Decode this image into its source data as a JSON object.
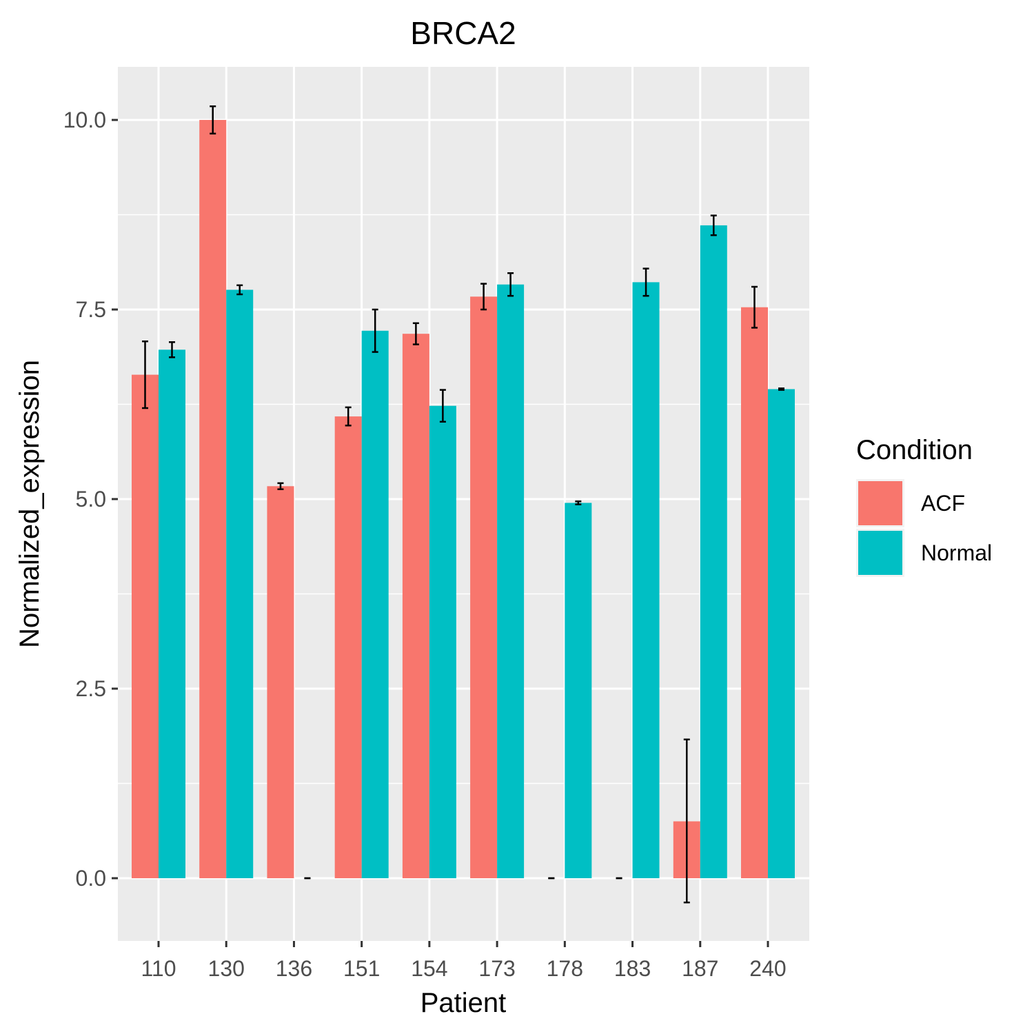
{
  "chart_data": {
    "type": "bar",
    "title": "BRCA2",
    "xlabel": "Patient",
    "ylabel": "Normalized_expression",
    "categories": [
      "110",
      "130",
      "136",
      "151",
      "154",
      "173",
      "178",
      "183",
      "187",
      "240"
    ],
    "series": [
      {
        "name": "ACF",
        "color": "#F8766D",
        "values": [
          6.64,
          10.0,
          5.17,
          6.09,
          7.18,
          7.67,
          0.0,
          0.0,
          0.75,
          7.53
        ],
        "error_low": [
          6.2,
          9.82,
          5.13,
          5.97,
          7.04,
          7.5,
          0.0,
          0.0,
          -0.32,
          7.26
        ],
        "error_high": [
          7.08,
          10.18,
          5.21,
          6.21,
          7.32,
          7.84,
          0.0,
          0.0,
          1.83,
          7.8
        ]
      },
      {
        "name": "Normal",
        "color": "#00BFC4",
        "values": [
          6.97,
          7.76,
          0.0,
          7.22,
          6.23,
          7.83,
          4.95,
          7.86,
          8.61,
          6.45
        ],
        "error_low": [
          6.87,
          7.7,
          0.0,
          6.94,
          6.02,
          7.68,
          4.93,
          7.68,
          8.48,
          6.44
        ],
        "error_high": [
          7.07,
          7.82,
          0.0,
          7.5,
          6.44,
          7.98,
          4.97,
          8.04,
          8.74,
          6.46
        ]
      }
    ],
    "ylim": [
      -0.8,
      10.7
    ],
    "yticks": [
      0.0,
      2.5,
      5.0,
      7.5,
      10.0
    ],
    "ytick_labels": [
      "0.0",
      "2.5",
      "5.0",
      "7.5",
      "10.0"
    ],
    "grid": true,
    "legend": {
      "title": "Condition",
      "position": "right"
    }
  }
}
